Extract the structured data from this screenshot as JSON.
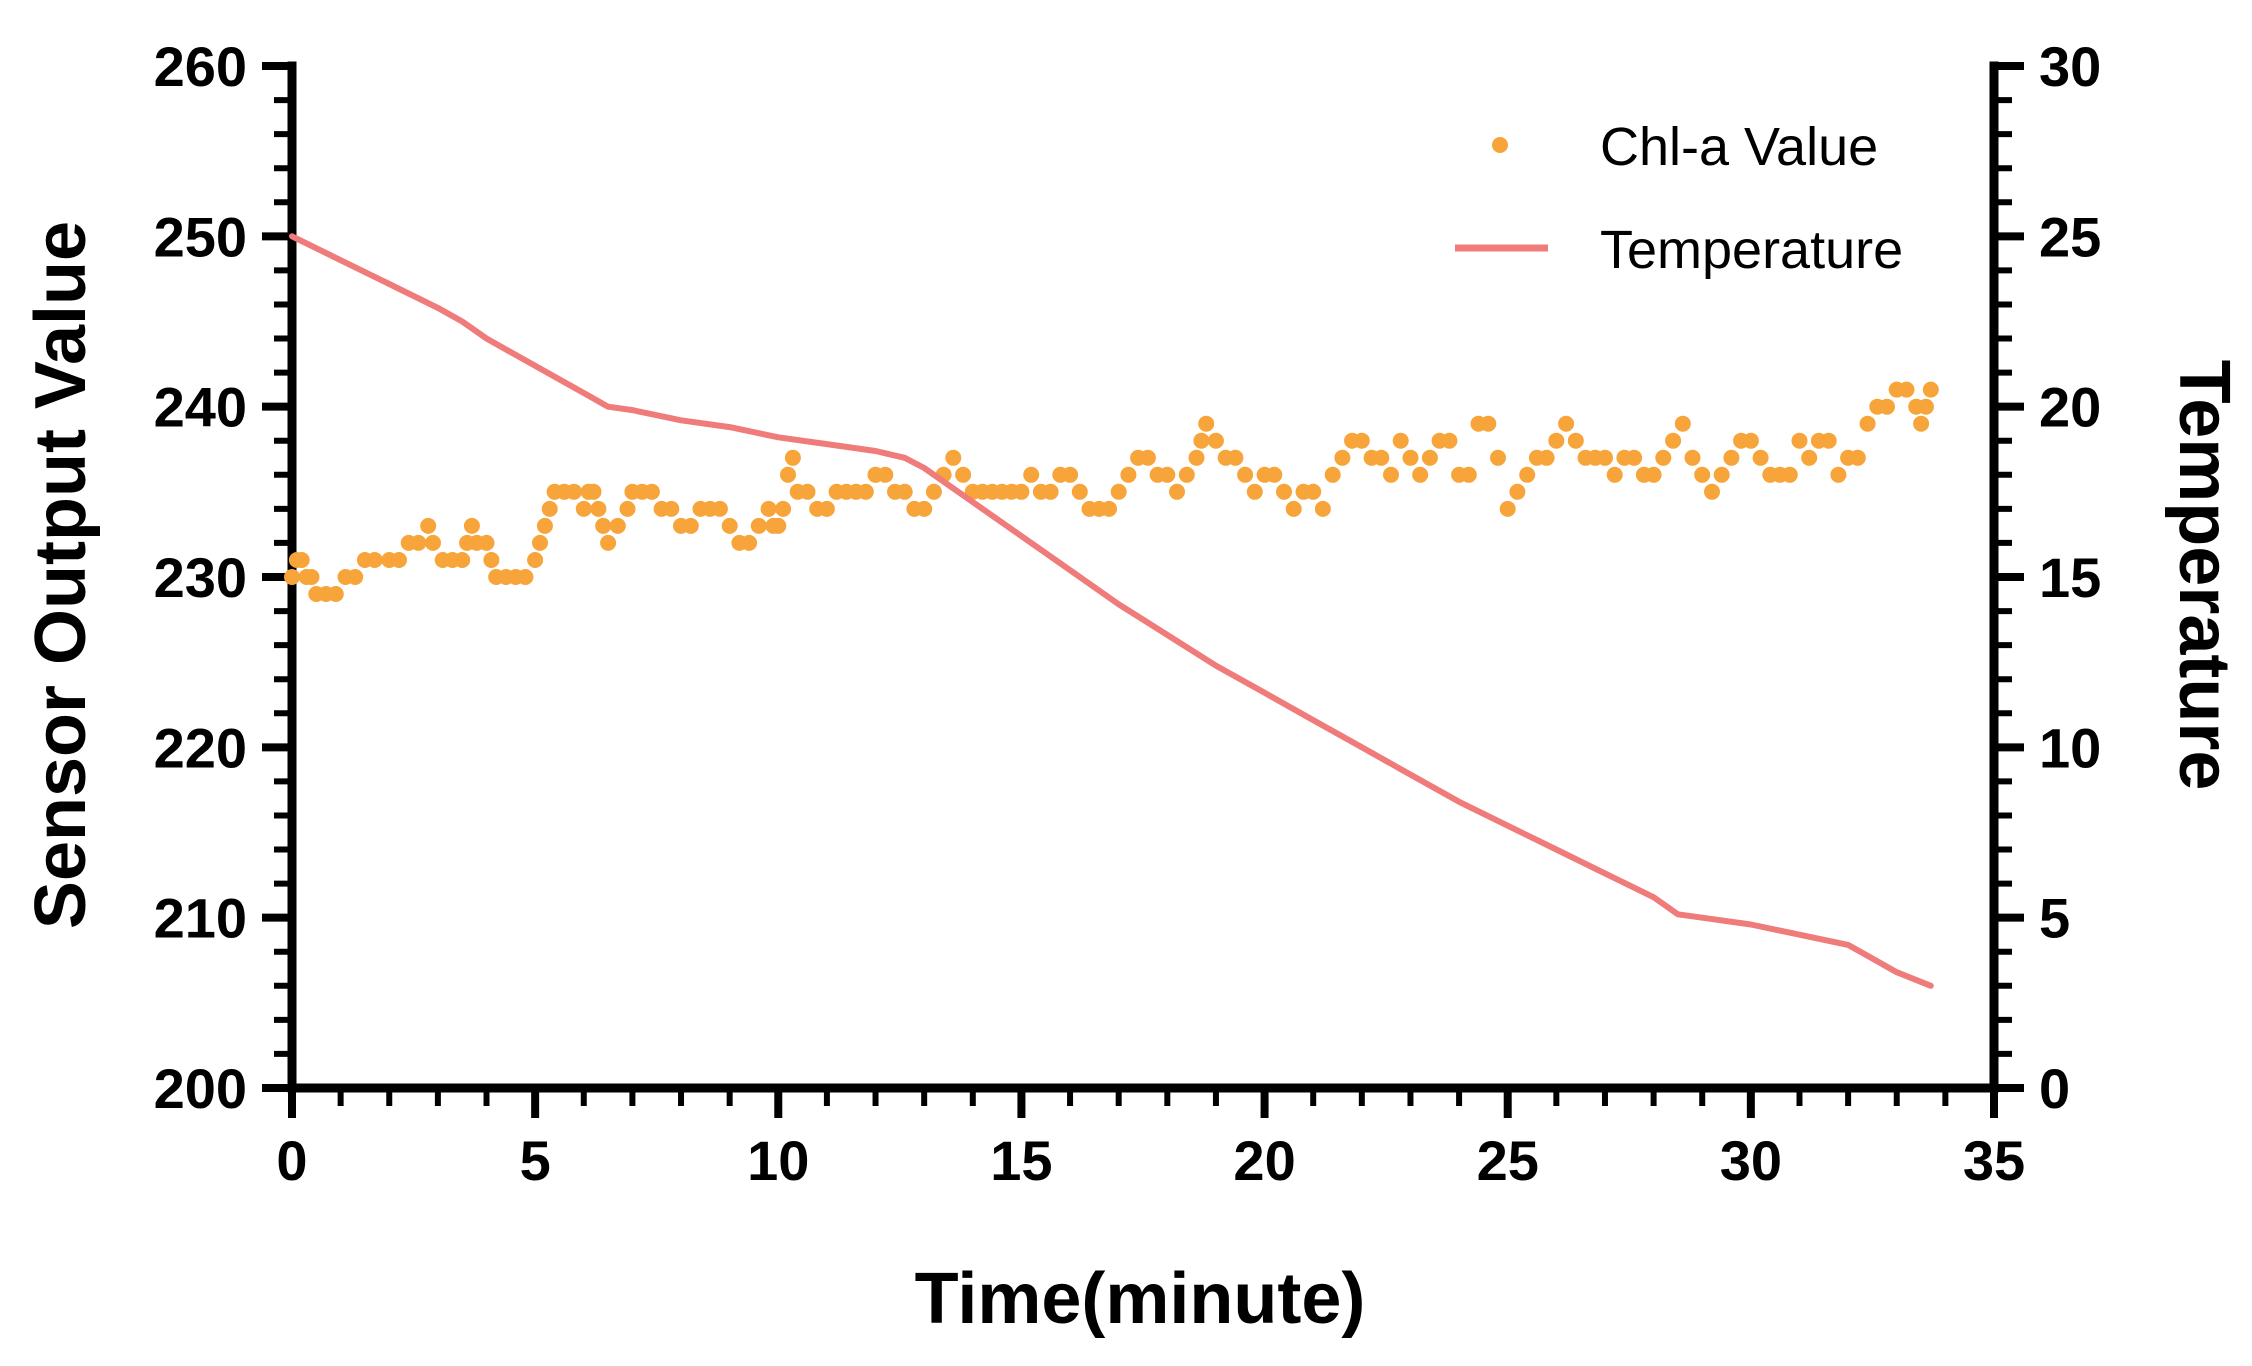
{
  "chart_data": {
    "type": "line",
    "title": "",
    "xlabel": "Time(minute)",
    "ylabel_left": "Sensor Output Value",
    "ylabel_right": "Temperature",
    "xlim": [
      0,
      35
    ],
    "ylim_left": [
      200,
      260
    ],
    "ylim_right": [
      0,
      30
    ],
    "x_ticks": [
      0,
      5,
      10,
      15,
      20,
      25,
      30,
      35
    ],
    "y_left_ticks": [
      200,
      210,
      220,
      230,
      240,
      250,
      260
    ],
    "y_right_ticks": [
      0,
      5,
      10,
      15,
      20,
      25,
      30
    ],
    "grid": false,
    "legend_position": "top-right",
    "series": [
      {
        "name": "Chl-a Value",
        "kind": "scatter",
        "axis": "left",
        "color": "#F7A43A",
        "points": [
          [
            0.0,
            230
          ],
          [
            0.1,
            231
          ],
          [
            0.2,
            231
          ],
          [
            0.3,
            230
          ],
          [
            0.4,
            230
          ],
          [
            0.5,
            229
          ],
          [
            0.7,
            229
          ],
          [
            0.9,
            229
          ],
          [
            1.1,
            230
          ],
          [
            1.3,
            230
          ],
          [
            1.5,
            231
          ],
          [
            1.7,
            231
          ],
          [
            2.0,
            231
          ],
          [
            2.2,
            231
          ],
          [
            2.4,
            232
          ],
          [
            2.6,
            232
          ],
          [
            2.8,
            233
          ],
          [
            2.9,
            232
          ],
          [
            3.1,
            231
          ],
          [
            3.3,
            231
          ],
          [
            3.5,
            231
          ],
          [
            3.6,
            232
          ],
          [
            3.7,
            233
          ],
          [
            3.8,
            232
          ],
          [
            4.0,
            232
          ],
          [
            4.1,
            231
          ],
          [
            4.2,
            230
          ],
          [
            4.4,
            230
          ],
          [
            4.6,
            230
          ],
          [
            4.8,
            230
          ],
          [
            5.0,
            231
          ],
          [
            5.1,
            232
          ],
          [
            5.2,
            233
          ],
          [
            5.3,
            234
          ],
          [
            5.4,
            235
          ],
          [
            5.6,
            235
          ],
          [
            5.8,
            235
          ],
          [
            6.0,
            234
          ],
          [
            6.1,
            235
          ],
          [
            6.2,
            235
          ],
          [
            6.3,
            234
          ],
          [
            6.4,
            233
          ],
          [
            6.5,
            232
          ],
          [
            6.7,
            233
          ],
          [
            6.9,
            234
          ],
          [
            7.0,
            235
          ],
          [
            7.2,
            235
          ],
          [
            7.4,
            235
          ],
          [
            7.6,
            234
          ],
          [
            7.8,
            234
          ],
          [
            8.0,
            233
          ],
          [
            8.2,
            233
          ],
          [
            8.4,
            234
          ],
          [
            8.6,
            234
          ],
          [
            8.8,
            234
          ],
          [
            9.0,
            233
          ],
          [
            9.2,
            232
          ],
          [
            9.4,
            232
          ],
          [
            9.6,
            233
          ],
          [
            9.8,
            234
          ],
          [
            9.9,
            233
          ],
          [
            10.0,
            233
          ],
          [
            10.1,
            234
          ],
          [
            10.2,
            236
          ],
          [
            10.3,
            237
          ],
          [
            10.4,
            235
          ],
          [
            10.6,
            235
          ],
          [
            10.8,
            234
          ],
          [
            11.0,
            234
          ],
          [
            11.2,
            235
          ],
          [
            11.4,
            235
          ],
          [
            11.6,
            235
          ],
          [
            11.8,
            235
          ],
          [
            12.0,
            236
          ],
          [
            12.2,
            236
          ],
          [
            12.4,
            235
          ],
          [
            12.6,
            235
          ],
          [
            12.8,
            234
          ],
          [
            13.0,
            234
          ],
          [
            13.2,
            235
          ],
          [
            13.4,
            236
          ],
          [
            13.6,
            237
          ],
          [
            13.8,
            236
          ],
          [
            14.0,
            235
          ],
          [
            14.2,
            235
          ],
          [
            14.4,
            235
          ],
          [
            14.6,
            235
          ],
          [
            14.8,
            235
          ],
          [
            15.0,
            235
          ],
          [
            15.2,
            236
          ],
          [
            15.4,
            235
          ],
          [
            15.6,
            235
          ],
          [
            15.8,
            236
          ],
          [
            16.0,
            236
          ],
          [
            16.2,
            235
          ],
          [
            16.4,
            234
          ],
          [
            16.6,
            234
          ],
          [
            16.8,
            234
          ],
          [
            17.0,
            235
          ],
          [
            17.2,
            236
          ],
          [
            17.4,
            237
          ],
          [
            17.6,
            237
          ],
          [
            17.8,
            236
          ],
          [
            18.0,
            236
          ],
          [
            18.2,
            235
          ],
          [
            18.4,
            236
          ],
          [
            18.6,
            237
          ],
          [
            18.7,
            238
          ],
          [
            18.8,
            239
          ],
          [
            19.0,
            238
          ],
          [
            19.2,
            237
          ],
          [
            19.4,
            237
          ],
          [
            19.6,
            236
          ],
          [
            19.8,
            235
          ],
          [
            20.0,
            236
          ],
          [
            20.2,
            236
          ],
          [
            20.4,
            235
          ],
          [
            20.6,
            234
          ],
          [
            20.8,
            235
          ],
          [
            21.0,
            235
          ],
          [
            21.2,
            234
          ],
          [
            21.4,
            236
          ],
          [
            21.6,
            237
          ],
          [
            21.8,
            238
          ],
          [
            22.0,
            238
          ],
          [
            22.2,
            237
          ],
          [
            22.4,
            237
          ],
          [
            22.6,
            236
          ],
          [
            22.8,
            238
          ],
          [
            23.0,
            237
          ],
          [
            23.2,
            236
          ],
          [
            23.4,
            237
          ],
          [
            23.6,
            238
          ],
          [
            23.8,
            238
          ],
          [
            24.0,
            236
          ],
          [
            24.2,
            236
          ],
          [
            24.4,
            239
          ],
          [
            24.6,
            239
          ],
          [
            24.8,
            237
          ],
          [
            25.0,
            234
          ],
          [
            25.2,
            235
          ],
          [
            25.4,
            236
          ],
          [
            25.6,
            237
          ],
          [
            25.8,
            237
          ],
          [
            26.0,
            238
          ],
          [
            26.2,
            239
          ],
          [
            26.4,
            238
          ],
          [
            26.6,
            237
          ],
          [
            26.8,
            237
          ],
          [
            27.0,
            237
          ],
          [
            27.2,
            236
          ],
          [
            27.4,
            237
          ],
          [
            27.6,
            237
          ],
          [
            27.8,
            236
          ],
          [
            28.0,
            236
          ],
          [
            28.2,
            237
          ],
          [
            28.4,
            238
          ],
          [
            28.6,
            239
          ],
          [
            28.8,
            237
          ],
          [
            29.0,
            236
          ],
          [
            29.2,
            235
          ],
          [
            29.4,
            236
          ],
          [
            29.6,
            237
          ],
          [
            29.8,
            238
          ],
          [
            30.0,
            238
          ],
          [
            30.2,
            237
          ],
          [
            30.4,
            236
          ],
          [
            30.6,
            236
          ],
          [
            30.8,
            236
          ],
          [
            31.0,
            238
          ],
          [
            31.2,
            237
          ],
          [
            31.4,
            238
          ],
          [
            31.6,
            238
          ],
          [
            31.8,
            236
          ],
          [
            32.0,
            237
          ],
          [
            32.2,
            237
          ],
          [
            32.4,
            239
          ],
          [
            32.6,
            240
          ],
          [
            32.8,
            240
          ],
          [
            33.0,
            241
          ],
          [
            33.2,
            241
          ],
          [
            33.4,
            240
          ],
          [
            33.5,
            239
          ],
          [
            33.6,
            240
          ],
          [
            33.7,
            241
          ]
        ]
      },
      {
        "name": "Temperature",
        "kind": "line",
        "axis": "right",
        "color": "#F07B7B",
        "points": [
          [
            0.0,
            25.0
          ],
          [
            1.0,
            24.3
          ],
          [
            2.0,
            23.6
          ],
          [
            3.0,
            22.9
          ],
          [
            3.5,
            22.5
          ],
          [
            4.0,
            22.0
          ],
          [
            5.0,
            21.2
          ],
          [
            6.0,
            20.4
          ],
          [
            6.5,
            20.0
          ],
          [
            7.0,
            19.9
          ],
          [
            8.0,
            19.6
          ],
          [
            9.0,
            19.4
          ],
          [
            10.0,
            19.1
          ],
          [
            11.0,
            18.9
          ],
          [
            12.0,
            18.7
          ],
          [
            12.6,
            18.5
          ],
          [
            13.0,
            18.2
          ],
          [
            14.0,
            17.2
          ],
          [
            15.0,
            16.2
          ],
          [
            16.0,
            15.2
          ],
          [
            17.0,
            14.2
          ],
          [
            18.0,
            13.3
          ],
          [
            19.0,
            12.4
          ],
          [
            20.0,
            11.6
          ],
          [
            21.0,
            10.8
          ],
          [
            22.0,
            10.0
          ],
          [
            23.0,
            9.2
          ],
          [
            24.0,
            8.4
          ],
          [
            25.0,
            7.7
          ],
          [
            26.0,
            7.0
          ],
          [
            27.0,
            6.3
          ],
          [
            28.0,
            5.6
          ],
          [
            28.5,
            5.1
          ],
          [
            29.0,
            5.0
          ],
          [
            30.0,
            4.8
          ],
          [
            31.0,
            4.5
          ],
          [
            32.0,
            4.2
          ],
          [
            32.5,
            3.8
          ],
          [
            33.0,
            3.4
          ],
          [
            33.7,
            3.0
          ]
        ]
      }
    ]
  }
}
